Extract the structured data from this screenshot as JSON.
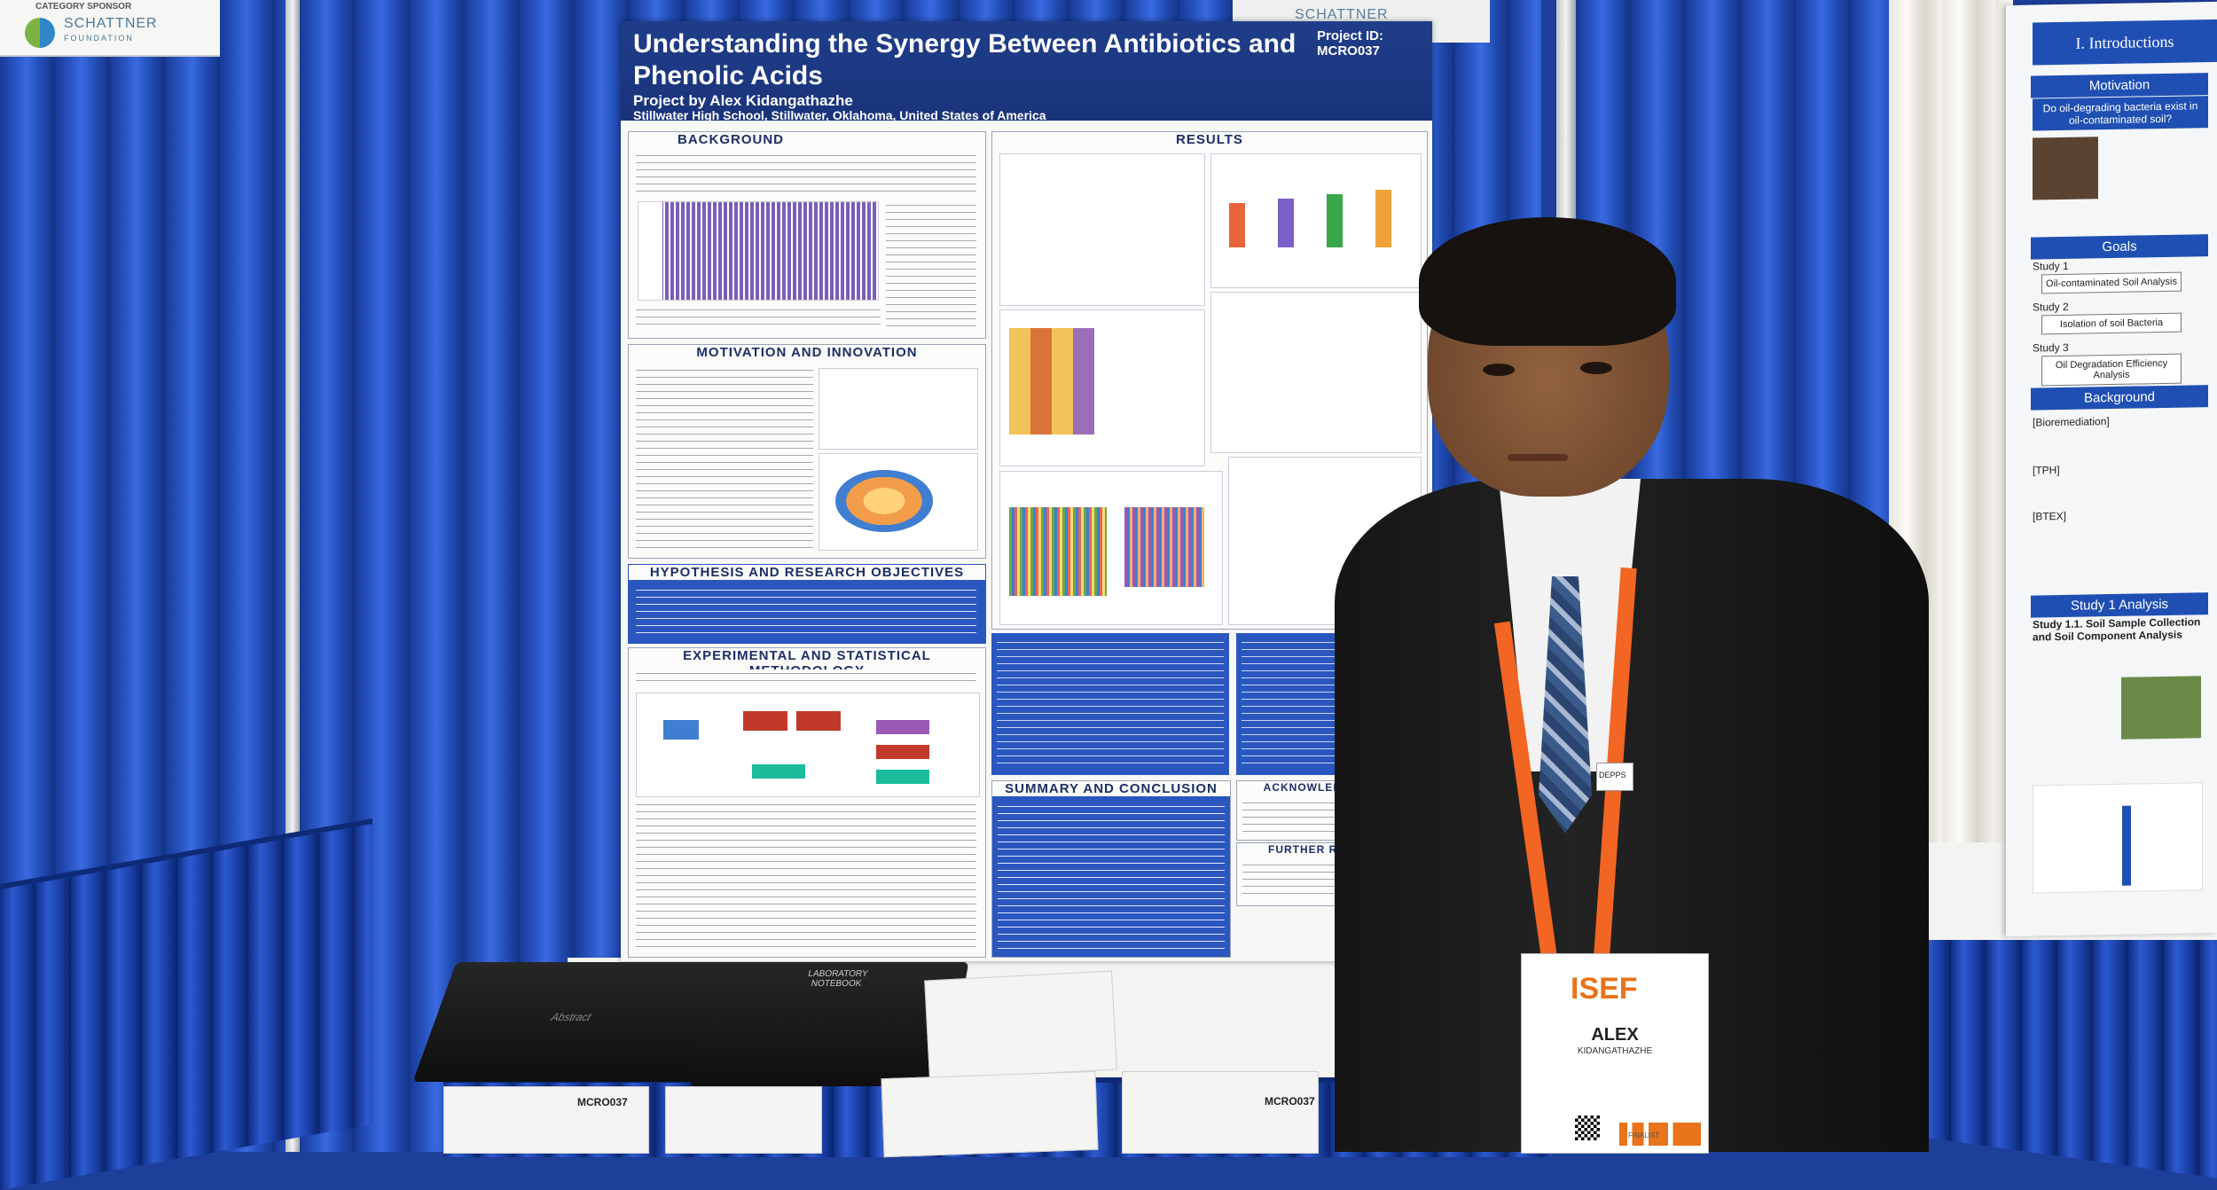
{
  "sponsor_sign": {
    "category": "CATEGORY SPONSOR",
    "name": "SCHATTNER",
    "sub": "FOUNDATION"
  },
  "back_sign": {
    "name": "SCHATTNER"
  },
  "poster": {
    "title": "Understanding the Synergy Between Antibiotics and Phenolic Acids",
    "author": "Project by Alex Kidangathazhe",
    "school": "Stillwater High School, Stillwater, Oklahoma, United States of America",
    "project_id_label": "Project ID:",
    "project_id": "MCRO037",
    "sections": {
      "background": "BACKGROUND",
      "motivation": "MOTIVATION AND INNOVATION",
      "hypothesis": "HYPOTHESIS AND RESEARCH OBJECTIVES",
      "methodology": "EXPERIMENTAL AND STATISTICAL METHODOLOGY",
      "results": "RESULTS",
      "summary": "SUMMARY AND CONCLUSION",
      "acknowledgements": "ACKNOWLEDGEMENTS",
      "further_research": "FURTHER RESEARCH"
    }
  },
  "binder_left": {
    "label": "Abstract"
  },
  "binder_right": {
    "label": "LABORATORY NOTEBOOK"
  },
  "table_paper_id": "MCRO037",
  "badge": {
    "logo": "ISEF",
    "name": "ALEX",
    "last_name": "KIDANGATHAZHE",
    "role": "FINALIST",
    "ribbon_text": "DEPPS"
  },
  "right_poster": {
    "heading": "I. Introductions",
    "motivation": "Motivation",
    "motivation_q": "Do oil-degrading bacteria exist in oil-contaminated soil?",
    "goals": "Goals",
    "study1": "Study 1",
    "study1_box": "Oil-contaminated Soil Analysis",
    "study2": "Study 2",
    "study2_box": "Isolation of soil Bacteria",
    "study3": "Study 3",
    "study3_box": "Oil Degradation Efficiency Analysis",
    "background": "Background",
    "bio": "[Bioremediation]",
    "tph": "[TPH]",
    "btex": "[BTEX]",
    "analysis": "Study 1 Analysis",
    "study11": "Study 1.1. Soil Sample Collection and Soil Component Analysis"
  }
}
